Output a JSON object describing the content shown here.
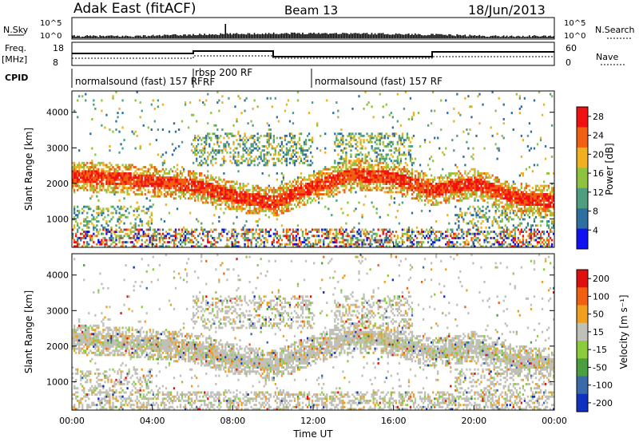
{
  "header": {
    "title": "Adak East (fitACF)",
    "beam": "Beam 13",
    "date": "18/Jun/2013"
  },
  "strip": {
    "nsky_label": "N.Sky",
    "nsky_ticks": [
      "10^5",
      "10^0"
    ],
    "nsearch_label": "N.Search",
    "freq_label": "Freq.",
    "freq_unit": "[MHz]",
    "freq_ticks": [
      "18",
      "8"
    ],
    "nave_label": "Nave",
    "nave_ticks": [
      "60",
      "0"
    ],
    "cpid_label": "CPID",
    "cpid_segments": [
      {
        "label": "normalsound (fast) 157 RF",
        "start": 0,
        "end": 6
      },
      {
        "label": "rbsp 200 RF",
        "start": 6,
        "end": 12
      },
      {
        "label": "normalsound (fast) 157 RF",
        "start": 12,
        "end": 24
      }
    ],
    "extra_label": "RF"
  },
  "chart_data": [
    {
      "type": "heatmap",
      "title": "",
      "xlabel": "",
      "ylabel": "Slant Range [km]",
      "xlim": [
        0,
        24
      ],
      "ylim": [
        200,
        4600
      ],
      "xticks": [
        "00:00",
        "04:00",
        "08:00",
        "12:00",
        "16:00",
        "20:00",
        "00:00"
      ],
      "yticks": [
        1000,
        2000,
        3000,
        4000
      ],
      "colorbar": {
        "label": "Power [dB]",
        "ticks": [
          4,
          8,
          12,
          16,
          20,
          24,
          28
        ],
        "range": [
          0,
          30
        ],
        "colors": [
          "#1010f0",
          "#2f6f9f",
          "#4f9f7f",
          "#8fc33f",
          "#f0b020",
          "#f06010",
          "#f01010"
        ]
      },
      "bands": [
        {
          "t": [
            0,
            2,
            4,
            6,
            8,
            10,
            12,
            14,
            16,
            18,
            20,
            22,
            24
          ],
          "range": [
            2200,
            2150,
            2050,
            1950,
            1650,
            1450,
            1900,
            2250,
            2150,
            1800,
            2000,
            1600,
            1500
          ],
          "value": 22
        }
      ]
    },
    {
      "type": "heatmap",
      "title": "",
      "xlabel": "Time UT",
      "ylabel": "Slant Range [km]",
      "xlim": [
        0,
        24
      ],
      "ylim": [
        200,
        4600
      ],
      "xticks": [
        "00:00",
        "04:00",
        "08:00",
        "12:00",
        "16:00",
        "20:00",
        "00:00"
      ],
      "yticks": [
        1000,
        2000,
        3000,
        4000
      ],
      "colorbar": {
        "label": "Velocity [m s⁻¹]",
        "ticks": [
          "200",
          "100",
          "50",
          "15",
          "-15",
          "-50",
          "-100",
          "-200"
        ],
        "colors": [
          "#1030c0",
          "#3a6aa8",
          "#4aa040",
          "#8ccc3c",
          "#c0c0b8",
          "#f0a020",
          "#f06010",
          "#e01010"
        ]
      }
    }
  ]
}
